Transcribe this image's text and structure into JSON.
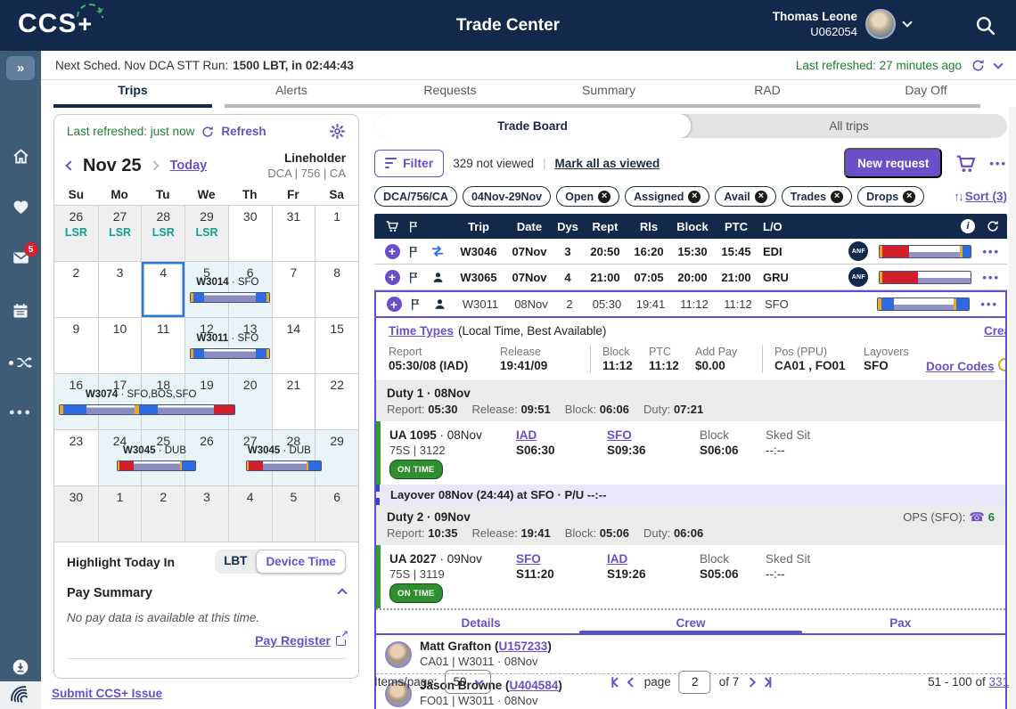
{
  "header": {
    "logo_text": "CCS",
    "logo_plus": "+",
    "title": "Trade Center",
    "user_name": "Thomas Leone",
    "user_id": "U062054"
  },
  "status_bar": {
    "label": "Next Sched. Nov DCA STT Run:",
    "value": "1500 LBT, in 02:44:43",
    "last_refreshed": "Last refreshed: 27 minutes ago"
  },
  "main_tabs": [
    {
      "label": "Trips",
      "active": "active"
    },
    {
      "label": "Alerts"
    },
    {
      "label": "Requests"
    },
    {
      "label": "Summary"
    },
    {
      "label": "RAD"
    },
    {
      "label": "Day Off"
    }
  ],
  "sidebar": {
    "mail_badge": "5"
  },
  "calendar": {
    "refreshed_text": "Last refreshed: just now",
    "refresh_label": "Refresh",
    "month_label": "Nov 25",
    "today_label": "Today",
    "holder_type": "Lineholder",
    "holder_detail": "DCA | 756 | CA",
    "day_headers": [
      "Su",
      "Mo",
      "Tu",
      "We",
      "Th",
      "Fr",
      "Sa"
    ],
    "weeks": [
      [
        {
          "d": "26",
          "cls": "muted",
          "badge": "LSR"
        },
        {
          "d": "27",
          "cls": "muted",
          "badge": "LSR"
        },
        {
          "d": "28",
          "cls": "muted",
          "badge": "LSR"
        },
        {
          "d": "29",
          "cls": "muted",
          "badge": "LSR"
        },
        {
          "d": "30"
        },
        {
          "d": "31"
        },
        {
          "d": "1"
        }
      ],
      [
        {
          "d": "2"
        },
        {
          "d": "3"
        },
        {
          "d": "4",
          "cls": "sel"
        },
        {
          "d": "5",
          "cls": "lb"
        },
        {
          "d": "6",
          "cls": "lb"
        },
        {
          "d": "7"
        },
        {
          "d": "8"
        }
      ],
      [
        {
          "d": "9"
        },
        {
          "d": "10"
        },
        {
          "d": "11"
        },
        {
          "d": "12",
          "cls": "lb"
        },
        {
          "d": "13",
          "cls": "lb"
        },
        {
          "d": "14"
        },
        {
          "d": "15"
        }
      ],
      [
        {
          "d": "16",
          "cls": "lb"
        },
        {
          "d": "17",
          "cls": "lb"
        },
        {
          "d": "18",
          "cls": "lb"
        },
        {
          "d": "19",
          "cls": "lb"
        },
        {
          "d": "20",
          "cls": "lb"
        },
        {
          "d": "21"
        },
        {
          "d": "22"
        }
      ],
      [
        {
          "d": "23"
        },
        {
          "d": "24",
          "cls": "lb"
        },
        {
          "d": "25",
          "cls": "lb"
        },
        {
          "d": "26",
          "cls": "lb"
        },
        {
          "d": "27",
          "cls": "lb"
        },
        {
          "d": "28",
          "cls": "lb"
        },
        {
          "d": "29",
          "cls": "lb"
        }
      ],
      [
        {
          "d": "30",
          "cls": "muted"
        },
        {
          "d": "1",
          "cls": "muted"
        },
        {
          "d": "2",
          "cls": "muted"
        },
        {
          "d": "3",
          "cls": "muted"
        },
        {
          "d": "4",
          "cls": "muted"
        },
        {
          "d": "5",
          "cls": "muted"
        },
        {
          "d": "6",
          "cls": "muted"
        }
      ]
    ],
    "trips": {
      "w3014": {
        "code": "W3014",
        "route": " · SFO",
        "bar": [
          [
            "y",
            3
          ],
          [
            "b",
            13
          ],
          [
            "cp",
            60
          ],
          [
            "b",
            13
          ],
          [
            "y",
            3
          ]
        ]
      },
      "w3011": {
        "code": "W3011",
        "route": " · SFO",
        "bar": [
          [
            "y",
            3
          ],
          [
            "b",
            13
          ],
          [
            "cp",
            60
          ],
          [
            "b",
            13
          ],
          [
            "y",
            3
          ]
        ]
      },
      "w3074": {
        "code": "W3074",
        "route": " · SFO,BOS,SFO",
        "bar": [
          [
            "y",
            2
          ],
          [
            "b",
            12
          ],
          [
            "cp",
            26
          ],
          [
            "y",
            2
          ],
          [
            "b",
            10
          ],
          [
            "cp",
            30
          ],
          [
            "r",
            11
          ]
        ]
      },
      "w3045a": {
        "code": "W3045",
        "route": " · DUB",
        "bar": [
          [
            "y",
            2
          ],
          [
            "r",
            16
          ],
          [
            "cp",
            50
          ],
          [
            "y",
            2
          ],
          [
            "b",
            14
          ]
        ]
      },
      "w3045b": {
        "code": "W3045",
        "route": " · DUB",
        "bar": [
          [
            "y",
            2
          ],
          [
            "r",
            16
          ],
          [
            "cp",
            50
          ],
          [
            "y",
            2
          ],
          [
            "b",
            14
          ]
        ]
      }
    },
    "highlight_label": "Highlight Today In",
    "toggle": [
      {
        "label": "LBT"
      },
      {
        "label": "Device Time",
        "active": "active"
      }
    ],
    "pay_summary_label": "Pay Summary",
    "pay_empty_text": "No pay data is available at this time.",
    "pay_register_label": "Pay Register"
  },
  "board": {
    "view_tabs": [
      {
        "label": "Trade Board",
        "active": "active"
      },
      {
        "label": "All trips"
      }
    ],
    "filter_label": "Filter",
    "not_viewed": "329 not viewed",
    "toolbar_sep": "|",
    "mark_all": "Mark all as viewed",
    "new_request": "New request",
    "chips": [
      {
        "label": "DCA/756/CA"
      },
      {
        "label": "04Nov-29Nov"
      },
      {
        "label": "Open",
        "removable": "x"
      },
      {
        "label": "Assigned",
        "removable": "x"
      },
      {
        "label": "Avail",
        "removable": "x"
      },
      {
        "label": "Trades",
        "removable": "x"
      },
      {
        "label": "Drops",
        "removable": "x"
      }
    ],
    "sort_arrows": "↑↓",
    "sort_label": "Sort (3)",
    "table": {
      "columns": {
        "trip": "Trip",
        "date": "Date",
        "dys": "Dys",
        "rept": "Rept",
        "rls": "Rls",
        "block": "Block",
        "ptc": "PTC",
        "lo": "L/O"
      },
      "rows_top": [
        {
          "trip": "W3046",
          "date": "07Nov",
          "dys": "3",
          "rept": "20:50",
          "rls": "16:20",
          "block": "15:30",
          "ptc": "15:45",
          "lo": "EDI",
          "anf": "ANF",
          "rowcls": "bold",
          "icon": "swap",
          "bar": [
            [
              "y",
              3
            ],
            [
              "r",
              30
            ],
            [
              "wp",
              58
            ],
            [
              "y",
              3
            ],
            [
              "b",
              9
            ]
          ]
        },
        {
          "trip": "W3065",
          "date": "07Nov",
          "dys": "4",
          "rept": "21:00",
          "rls": "07:05",
          "block": "20:00",
          "ptc": "21:00",
          "lo": "GRU",
          "anf": "ANF",
          "rowcls": "bold",
          "icon": "pilot",
          "bar": [
            [
              "y",
              3
            ],
            [
              "r",
              40
            ],
            [
              "wp",
              60
            ]
          ]
        }
      ],
      "sel_row": {
        "trip": "W3011",
        "date": "08Nov",
        "dys": "2",
        "rept": "05:30",
        "rls": "19:41",
        "block": "11:12",
        "ptc": "11:12",
        "lo": "SFO",
        "bar": [
          [
            "y",
            3
          ],
          [
            "b",
            12
          ],
          [
            "wp",
            58
          ],
          [
            "y",
            3
          ],
          [
            "b",
            12
          ]
        ]
      }
    },
    "detail": {
      "time_types_link": "Time Types",
      "time_types_suffix": "(Local Time, Best Available)",
      "create_clipped": "Crea",
      "report": {
        "label": "Report",
        "value": "05:30/08 (IAD)"
      },
      "release": {
        "label": "Release",
        "value": "19:41/09"
      },
      "block": {
        "label": "Block",
        "value": "11:12"
      },
      "ptc": {
        "label": "PTC",
        "value": "11:12"
      },
      "addpay": {
        "label": "Add Pay",
        "value": "$0.00"
      },
      "pos": {
        "label": "Pos (PPU)",
        "value": "CA01 , FO01"
      },
      "layovers": {
        "label": "Layovers",
        "value": "SFO"
      },
      "door_codes": "Door Codes",
      "duty1": {
        "title": "Duty 1 · 08Nov",
        "stats": [
          {
            "l": "Report:",
            "v": "05:30"
          },
          {
            "l": "Release:",
            "v": "09:51"
          },
          {
            "l": "Block:",
            "v": "06:06"
          },
          {
            "l": "Duty:",
            "v": "07:21"
          }
        ]
      },
      "flight1": {
        "code": "UA 1095",
        "date": "· 08Nov",
        "equip": "75S | 3122",
        "status": "ON TIME",
        "dep_code": "IAD",
        "dep_time": "S06:30",
        "arr_code": "SFO",
        "arr_time": "S09:36",
        "block_label": "Block",
        "block_time": "S06:06",
        "sked_label": "Sked Sit",
        "sked_time": "--:--"
      },
      "layover": {
        "bold": "Layover",
        "rest": "08Nov (24:44) at SFO · P/U --:--"
      },
      "duty2": {
        "title": "Duty 2 · 09Nov",
        "ops_label": "OPS (SFO):",
        "ops_value": "6",
        "stats": [
          {
            "l": "Report:",
            "v": "10:35"
          },
          {
            "l": "Release:",
            "v": "19:41"
          },
          {
            "l": "Block:",
            "v": "05:06"
          },
          {
            "l": "Duty:",
            "v": "06:06"
          }
        ]
      },
      "flight2": {
        "code": "UA 2027",
        "date": "· 09Nov",
        "equip": "75S | 3119",
        "status": "ON TIME",
        "dep_code": "SFO",
        "dep_time": "S11:20",
        "arr_code": "IAD",
        "arr_time": "S19:26",
        "block_label": "Block",
        "block_time": "S05:06",
        "sked_label": "Sked Sit",
        "sked_time": "--:--"
      },
      "sub_tabs": [
        {
          "label": "Details"
        },
        {
          "label": "Crew",
          "active": "active"
        },
        {
          "label": "Pax"
        }
      ],
      "crew": [
        {
          "prefix": "Matt Grafton (",
          "id": "U157233",
          "suffix": ")",
          "assignment": "CA01 | W3011 · 08Nov"
        },
        {
          "prefix": "Jason Browne (",
          "id": "U404584",
          "suffix": ")",
          "assignment": "FO01 | W3011 · 08Nov"
        }
      ]
    }
  },
  "pagination": {
    "items_label": "Items/page:",
    "items_value": "50",
    "page_label": "page",
    "page_value": "2",
    "of_label": "of 7",
    "range_text": "51 - 100 of",
    "total": "331"
  },
  "footer": {
    "issue_link": "Submit CCS+ Issue"
  }
}
